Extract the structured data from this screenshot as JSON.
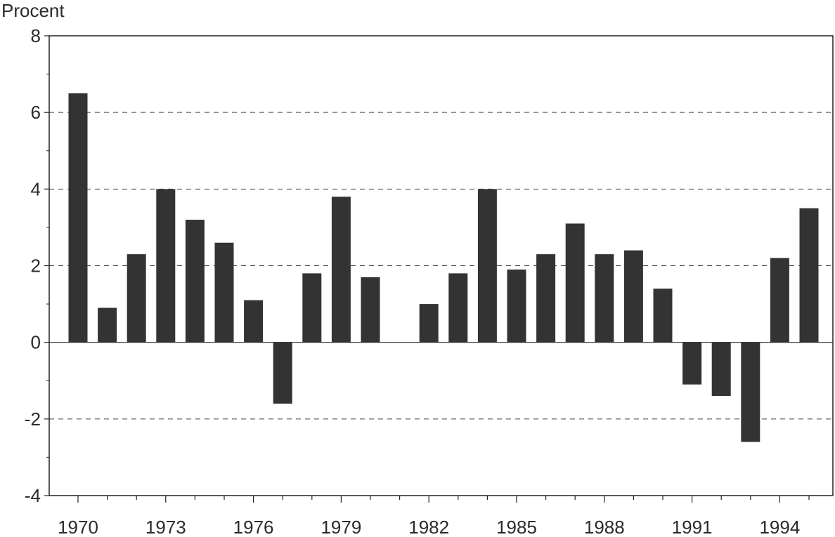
{
  "chart_data": {
    "type": "bar",
    "title": "",
    "ylabel": "Procent",
    "xlabel": "",
    "ylim": [
      -4,
      8
    ],
    "yticks": [
      "-4",
      "-2",
      "0",
      "2",
      "4",
      "6",
      "8"
    ],
    "grid": "dashed horizontal at 6, 4, 2, -2",
    "bar_color": "#333333",
    "categories": [
      "1970",
      "1971",
      "1972",
      "1973",
      "1974",
      "1975",
      "1976",
      "1977",
      "1978",
      "1979",
      "1980",
      "1981",
      "1982",
      "1983",
      "1984",
      "1985",
      "1986",
      "1987",
      "1988",
      "1989",
      "1990",
      "1991",
      "1992",
      "1993",
      "1994",
      "1995"
    ],
    "xtick_labels": [
      "1970",
      "1973",
      "1976",
      "1979",
      "1982",
      "1985",
      "1988",
      "1991",
      "1994"
    ],
    "values": [
      6.5,
      0.9,
      2.3,
      4.0,
      3.2,
      2.6,
      1.1,
      -1.6,
      1.8,
      3.8,
      1.7,
      0,
      1.0,
      1.8,
      4.0,
      1.9,
      2.3,
      3.1,
      2.3,
      2.4,
      1.4,
      -1.1,
      -1.4,
      -2.6,
      2.2,
      3.5
    ]
  }
}
